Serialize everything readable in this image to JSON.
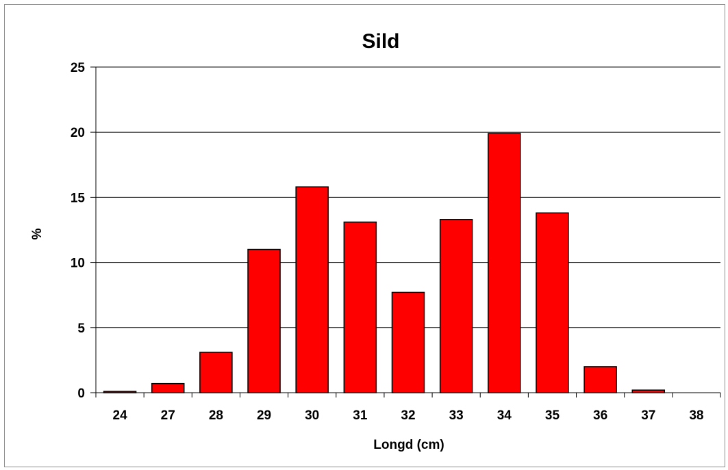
{
  "chart_data": {
    "type": "bar",
    "title": "Sild",
    "xlabel": "Longd (cm)",
    "ylabel": "%",
    "categories": [
      "24",
      "27",
      "28",
      "29",
      "30",
      "31",
      "32",
      "33",
      "34",
      "35",
      "36",
      "37",
      "38"
    ],
    "values": [
      0.1,
      0.7,
      3.1,
      11.0,
      15.8,
      13.1,
      7.7,
      13.3,
      19.9,
      13.8,
      2.0,
      0.2,
      0
    ],
    "ylim": [
      0,
      25
    ],
    "yticks": [
      "0",
      "5",
      "10",
      "15",
      "20",
      "25"
    ],
    "grid": true,
    "legend": "none",
    "bar_color": "#ff0000",
    "bar_outline": "#000000",
    "gridline_color": "#000000"
  }
}
